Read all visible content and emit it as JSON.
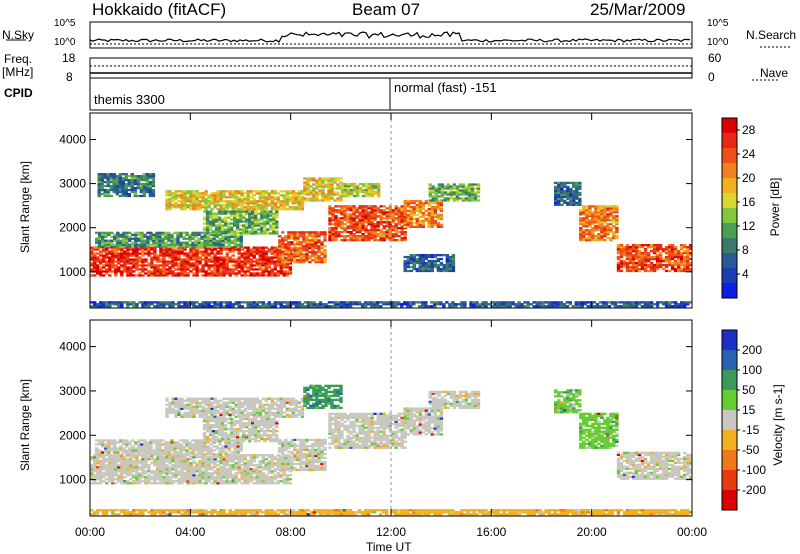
{
  "header": {
    "title": "Hokkaido (fitACF)",
    "beam": "Beam 07",
    "date": "25/Mar/2009"
  },
  "top_panels": {
    "nsky_label": "N.Sky",
    "nsky_ticks": [
      "10^5",
      "10^0"
    ],
    "nsearch_label": "N.Search",
    "nsearch_ticks": [
      "10^5",
      "10^0"
    ],
    "freq_label": "Freq.",
    "freq_unit": "[MHz]",
    "freq_ticks": [
      "18",
      "8"
    ],
    "nave_label": "Nave",
    "nave_ticks": [
      "60",
      "0"
    ],
    "cpid_label": "CPID",
    "cpid_segments": [
      {
        "start_hour": 0.0,
        "label": "themis 3300"
      },
      {
        "start_hour": 12.0,
        "label": "normal (fast) -151"
      }
    ]
  },
  "chart_data": [
    {
      "type": "heatmap",
      "name": "power",
      "x_axis": {
        "range_hours": [
          0,
          24
        ],
        "tick_labels": [
          "00:00",
          "04:00",
          "08:00",
          "12:00",
          "16:00",
          "20:00",
          "00:00"
        ]
      },
      "ylabel": "Slant Range [km]",
      "ylim": [
        180,
        4600
      ],
      "yticks": [
        1000,
        2000,
        3000,
        4000
      ],
      "colorbar": {
        "label": "Power [dB]",
        "ticks": [
          "4",
          "8",
          "12",
          "16",
          "20",
          "24",
          "28"
        ],
        "tick_values": [
          4,
          8,
          12,
          16,
          20,
          24,
          28
        ],
        "range": [
          0,
          30
        ],
        "colors": [
          "#0a1ee6",
          "#1e3cb4",
          "#2a5a96",
          "#3a7a6a",
          "#4aa050",
          "#80c840",
          "#d8d830",
          "#f0b020",
          "#f08020",
          "#ee5018",
          "#e82814",
          "#dd0000"
        ]
      },
      "regions": [
        {
          "t": [
            0.0,
            8.0
          ],
          "r": [
            900,
            1550
          ],
          "level": 27
        },
        {
          "t": [
            0.2,
            6.0
          ],
          "r": [
            1550,
            1900
          ],
          "level": 10
        },
        {
          "t": [
            3.0,
            8.5
          ],
          "r": [
            2400,
            2850
          ],
          "level": 18
        },
        {
          "t": [
            0.3,
            2.5
          ],
          "r": [
            2700,
            3200
          ],
          "level": 8
        },
        {
          "t": [
            4.5,
            7.5
          ],
          "r": [
            1850,
            2350
          ],
          "level": 12
        },
        {
          "t": [
            7.5,
            9.3
          ],
          "r": [
            1200,
            1900
          ],
          "level": 24
        },
        {
          "t": [
            8.5,
            10.0
          ],
          "r": [
            2600,
            3100
          ],
          "level": 18
        },
        {
          "t": [
            9.5,
            12.5
          ],
          "r": [
            1700,
            2500
          ],
          "level": 25
        },
        {
          "t": [
            10.0,
            11.5
          ],
          "r": [
            2700,
            3000
          ],
          "level": 16
        },
        {
          "t": [
            12.5,
            14.0
          ],
          "r": [
            2000,
            2600
          ],
          "level": 22
        },
        {
          "t": [
            13.5,
            15.5
          ],
          "r": [
            2600,
            3000
          ],
          "level": 12
        },
        {
          "t": [
            12.5,
            14.5
          ],
          "r": [
            1000,
            1400
          ],
          "level": 6
        },
        {
          "t": [
            18.5,
            19.5
          ],
          "r": [
            2500,
            3000
          ],
          "level": 6
        },
        {
          "t": [
            19.5,
            21.0
          ],
          "r": [
            1700,
            2500
          ],
          "level": 22
        },
        {
          "t": [
            21.0,
            24.0
          ],
          "r": [
            1000,
            1600
          ],
          "level": 25
        },
        {
          "t": [
            0.0,
            24.0
          ],
          "r": [
            200,
            320
          ],
          "level": 5
        }
      ]
    },
    {
      "type": "heatmap",
      "name": "velocity",
      "x_axis": {
        "range_hours": [
          0,
          24
        ],
        "tick_labels": [
          "00:00",
          "04:00",
          "08:00",
          "12:00",
          "16:00",
          "20:00",
          "00:00"
        ]
      },
      "xlabel": "Time UT",
      "ylabel": "Slant Range [km]",
      "ylim": [
        180,
        4600
      ],
      "yticks": [
        1000,
        2000,
        3000,
        4000
      ],
      "colorbar": {
        "label": "Velocity [m s-1]",
        "ticks": [
          "200",
          "100",
          "50",
          "15",
          "-15",
          "-50",
          "-100",
          "-200"
        ],
        "colors": [
          "#1e2ec8",
          "#2a60b0",
          "#3a9a5a",
          "#66cc33",
          "#c8c8c0",
          "#f0b020",
          "#f07818",
          "#e83a10",
          "#dd0000"
        ]
      },
      "regions": [
        {
          "t": [
            0.0,
            8.0
          ],
          "r": [
            900,
            1550
          ],
          "level": 4
        },
        {
          "t": [
            0.2,
            6.0
          ],
          "r": [
            1550,
            1900
          ],
          "level": 4
        },
        {
          "t": [
            3.0,
            8.5
          ],
          "r": [
            2400,
            2850
          ],
          "level": 4
        },
        {
          "t": [
            4.5,
            7.5
          ],
          "r": [
            1850,
            2350
          ],
          "level": 4
        },
        {
          "t": [
            7.5,
            9.3
          ],
          "r": [
            1200,
            1900
          ],
          "level": 4
        },
        {
          "t": [
            8.5,
            10.0
          ],
          "r": [
            2600,
            3100
          ],
          "level": 2
        },
        {
          "t": [
            9.5,
            12.5
          ],
          "r": [
            1700,
            2500
          ],
          "level": 4
        },
        {
          "t": [
            12.5,
            14.0
          ],
          "r": [
            2000,
            2600
          ],
          "level": 4
        },
        {
          "t": [
            13.5,
            15.5
          ],
          "r": [
            2600,
            3000
          ],
          "level": 4
        },
        {
          "t": [
            18.5,
            19.5
          ],
          "r": [
            2500,
            3000
          ],
          "level": 3
        },
        {
          "t": [
            19.5,
            21.0
          ],
          "r": [
            1700,
            2500
          ],
          "level": 3
        },
        {
          "t": [
            21.0,
            24.0
          ],
          "r": [
            1000,
            1600
          ],
          "level": 4
        },
        {
          "t": [
            0.0,
            24.0
          ],
          "r": [
            200,
            320
          ],
          "level": 5
        }
      ]
    }
  ]
}
